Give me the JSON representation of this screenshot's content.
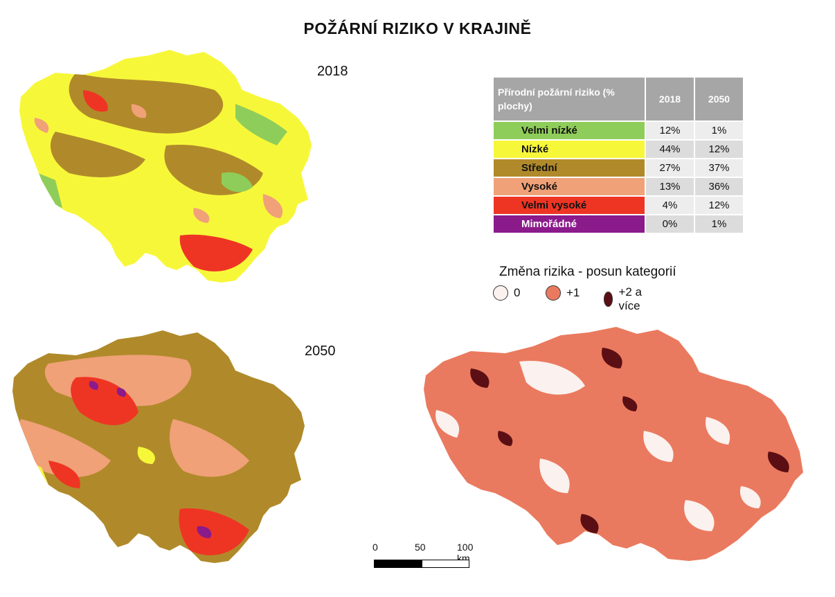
{
  "title": "POŽÁRNÍ RIZIKO V KRAJINĚ",
  "maps": {
    "top_year": "2018",
    "bottom_year": "2050"
  },
  "table": {
    "header": "Přírodní požární riziko (% plochy)",
    "col_2018": "2018",
    "col_2050": "2050",
    "rows": [
      {
        "label": "Velmi nízké",
        "v2018": "12%",
        "v2050": "1%",
        "color": "#8fcd5a"
      },
      {
        "label": "Nízké",
        "v2018": "44%",
        "v2050": "12%",
        "color": "#f7f73a"
      },
      {
        "label": "Střední",
        "v2018": "27%",
        "v2050": "37%",
        "color": "#b08a2a"
      },
      {
        "label": "Vysoké",
        "v2018": "13%",
        "v2050": "36%",
        "color": "#f0a178"
      },
      {
        "label": "Velmi vysoké",
        "v2018": "4%",
        "v2050": "12%",
        "color": "#ee3524"
      },
      {
        "label": "Mimořádné",
        "v2018": "0%",
        "v2050": "1%",
        "color": "#8b1a8b"
      }
    ]
  },
  "change_legend": {
    "title": "Změna rizika - posun kategorií",
    "items": [
      {
        "label": "0",
        "color": "#fbf1ee"
      },
      {
        "label": "+1",
        "color": "#ea7a5f"
      },
      {
        "label": "+2 a více",
        "color": "#5b0f14"
      }
    ]
  },
  "scale": {
    "labels": [
      "0",
      "50",
      "100 km"
    ]
  },
  "colors": {
    "very_low": "#8fcd5a",
    "low": "#f7f73a",
    "medium": "#b08a2a",
    "high": "#f0a178",
    "very_high": "#ee3524",
    "extreme": "#8b1a8b",
    "change_0": "#fbf1ee",
    "change_1": "#ea7a5f",
    "change_2": "#5b0f14"
  }
}
